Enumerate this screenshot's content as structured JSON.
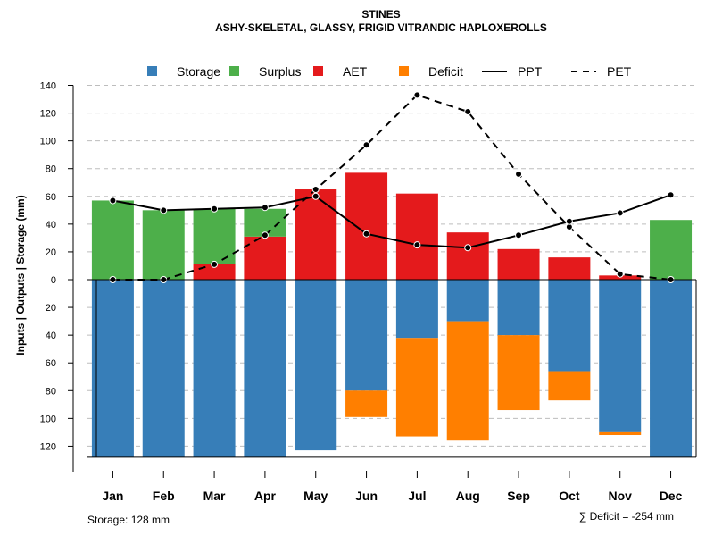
{
  "chart_data": {
    "type": "bar",
    "title": "STINES",
    "subtitle": "ASHY-SKELETAL, GLASSY, FRIGID VITRANDIC HAPLOXEROLLS",
    "ylabel": "Inputs | Outputs | Storage     (mm)",
    "ylim": [
      -132,
      140
    ],
    "y_ticks": [
      -120,
      -100,
      -80,
      -60,
      -40,
      -20,
      0,
      20,
      40,
      60,
      80,
      100,
      120,
      140
    ],
    "y_tick_labels": [
      "120",
      "100",
      "80",
      "60",
      "40",
      "20",
      "0",
      "20",
      "40",
      "60",
      "80",
      "100",
      "120",
      "140"
    ],
    "categories": [
      "Jan",
      "Feb",
      "Mar",
      "Apr",
      "May",
      "Jun",
      "Jul",
      "Aug",
      "Sep",
      "Oct",
      "Nov",
      "Dec"
    ],
    "legend": [
      "Storage",
      "Surplus",
      "AET",
      "Deficit",
      "PPT",
      "PET"
    ],
    "legend_position": "top",
    "colors": {
      "Storage": "#377eb8",
      "Surplus": "#4daf4a",
      "AET": "#e41a1c",
      "Deficit": "#ff7f00",
      "line": "#000000"
    },
    "series": [
      {
        "name": "Surplus",
        "values": [
          57,
          50,
          40,
          20,
          0,
          0,
          0,
          0,
          0,
          0,
          0,
          43
        ]
      },
      {
        "name": "AET",
        "values": [
          0,
          0,
          11,
          31,
          65,
          77,
          62,
          34,
          22,
          16,
          3,
          0
        ]
      },
      {
        "name": "Storage",
        "values": [
          128,
          128,
          128,
          128,
          123,
          80,
          42,
          30,
          40,
          66,
          110,
          128
        ]
      },
      {
        "name": "Deficit",
        "values": [
          0,
          0,
          0,
          0,
          0,
          19,
          71,
          86,
          54,
          21,
          2,
          0
        ]
      },
      {
        "name": "PPT",
        "values": [
          57,
          50,
          51,
          52,
          60,
          33,
          25,
          23,
          32,
          42,
          48,
          61
        ]
      },
      {
        "name": "PET",
        "values": [
          0,
          0,
          11,
          32,
          65,
          97,
          133,
          121,
          76,
          38,
          4,
          0
        ]
      }
    ],
    "storage_note": "Storage: 128 mm",
    "deficit_note": "∑ Deficit = -254 mm"
  }
}
